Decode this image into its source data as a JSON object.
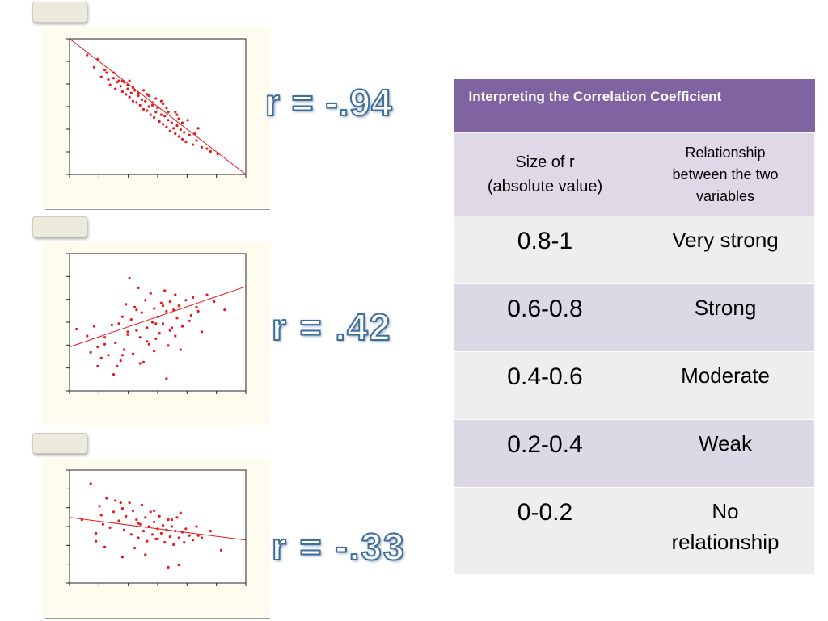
{
  "chart_data": [
    {
      "type": "scatter",
      "r_label": "r = -.94",
      "xlim": [
        0,
        10
      ],
      "ylim": [
        0,
        10
      ],
      "x": [
        1.0,
        1.4,
        1.6,
        1.8,
        2.0,
        2.2,
        2.3,
        2.5,
        2.6,
        2.7,
        2.9,
        3.0,
        3.1,
        3.2,
        3.3,
        3.4,
        3.5,
        3.6,
        3.7,
        3.8,
        3.9,
        4.0,
        4.1,
        4.2,
        4.3,
        4.4,
        4.5,
        4.6,
        4.7,
        4.8,
        4.9,
        5.0,
        5.1,
        5.2,
        5.3,
        5.4,
        5.5,
        5.6,
        5.7,
        5.8,
        5.9,
        6.0,
        6.1,
        6.2,
        6.3,
        6.4,
        6.5,
        6.6,
        6.8,
        7.0,
        7.2,
        7.5,
        7.8,
        8.0,
        8.4,
        3.4,
        4.2,
        4.9,
        5.5,
        6.1,
        2.1,
        2.8,
        3.6,
        4.5,
        5.3,
        6.0,
        6.7,
        7.3,
        3.0,
        3.9,
        4.7,
        5.6,
        6.4,
        2.5,
        3.3,
        4.4,
        5.2,
        6.2,
        7.1
      ],
      "y": [
        8.8,
        7.9,
        8.5,
        7.2,
        7.7,
        7.0,
        6.6,
        7.1,
        6.3,
        6.8,
        6.5,
        6.1,
        6.8,
        5.9,
        6.3,
        5.7,
        6.0,
        5.4,
        6.2,
        5.3,
        5.8,
        5.1,
        5.5,
        4.8,
        5.4,
        4.7,
        5.0,
        4.4,
        5.1,
        4.2,
        4.6,
        4.9,
        3.9,
        4.4,
        3.7,
        4.3,
        3.5,
        4.0,
        3.2,
        3.8,
        3.4,
        3.0,
        3.6,
        2.8,
        3.3,
        2.6,
        3.1,
        2.4,
        2.9,
        2.2,
        2.5,
        2.0,
        1.9,
        1.7,
        1.5,
        6.9,
        6.2,
        5.6,
        4.9,
        4.4,
        7.5,
        6.9,
        6.4,
        5.8,
        5.2,
        4.6,
        4.0,
        3.4,
        6.9,
        6.0,
        5.3,
        4.6,
        3.8,
        7.5,
        6.6,
        5.9,
        5.4,
        4.1,
        3.0
      ],
      "fit": [
        [
          0,
          10
        ],
        [
          10,
          0
        ]
      ]
    },
    {
      "type": "scatter",
      "r_label": "r = .42",
      "xlim": [
        0,
        10
      ],
      "ylim": [
        0,
        10
      ],
      "x": [
        0.4,
        1.0,
        1.2,
        1.4,
        1.6,
        1.8,
        2.0,
        2.2,
        2.4,
        2.5,
        2.6,
        2.8,
        2.9,
        3.0,
        3.1,
        3.2,
        3.3,
        3.4,
        3.5,
        3.6,
        3.7,
        3.8,
        3.9,
        4.0,
        4.1,
        4.2,
        4.3,
        4.4,
        4.5,
        4.6,
        4.7,
        4.8,
        4.9,
        5.0,
        5.1,
        5.2,
        5.3,
        5.4,
        5.5,
        5.6,
        5.7,
        5.8,
        5.9,
        6.0,
        6.1,
        6.2,
        6.4,
        6.6,
        6.8,
        7.0,
        7.2,
        7.5,
        7.8,
        8.2,
        8.8,
        2.0,
        2.7,
        3.3,
        3.8,
        4.4,
        4.9,
        5.3,
        5.7,
        6.3,
        6.9,
        1.6,
        3.0,
        4.0,
        4.8,
        5.5,
        6.0,
        7.3
      ],
      "y": [
        4.5,
        4.0,
        2.8,
        4.7,
        3.2,
        2.4,
        3.9,
        2.6,
        4.8,
        1.2,
        3.5,
        4.9,
        2.2,
        5.4,
        3.0,
        6.3,
        4.1,
        8.2,
        5.2,
        2.7,
        6.1,
        4.4,
        7.5,
        3.9,
        5.7,
        2.1,
        6.6,
        4.6,
        3.4,
        7.1,
        5.0,
        6.0,
        3.8,
        5.4,
        4.2,
        6.4,
        4.9,
        7.3,
        5.8,
        3.3,
        6.5,
        4.6,
        5.9,
        7.0,
        5.3,
        6.2,
        4.7,
        6.6,
        5.1,
        6.8,
        6.1,
        4.3,
        7.0,
        6.5,
        5.9,
        3.4,
        1.8,
        4.3,
        5.9,
        3.6,
        4.9,
        6.2,
        4.4,
        3.0,
        5.5,
        1.8,
        2.6,
        2.0,
        2.9,
        0.9,
        4.0,
        5.8
      ],
      "fit": [
        [
          0,
          3.2
        ],
        [
          10,
          7.6
        ]
      ]
    },
    {
      "type": "scatter",
      "r_label": "r = -.33",
      "xlim": [
        0,
        10
      ],
      "ylim": [
        0,
        10
      ],
      "x": [
        0.7,
        1.2,
        1.5,
        1.7,
        1.9,
        2.1,
        2.3,
        2.5,
        2.6,
        2.8,
        3.0,
        3.1,
        3.2,
        3.4,
        3.5,
        3.6,
        3.8,
        3.9,
        4.0,
        4.1,
        4.2,
        4.3,
        4.4,
        4.5,
        4.6,
        4.7,
        4.8,
        4.9,
        5.0,
        5.1,
        5.2,
        5.3,
        5.4,
        5.5,
        5.6,
        5.7,
        5.8,
        5.9,
        6.0,
        6.1,
        6.2,
        6.3,
        6.4,
        6.5,
        6.6,
        6.8,
        7.0,
        7.2,
        7.5,
        8.0,
        8.6,
        1.5,
        2.0,
        3.0,
        3.7,
        4.3,
        5.0,
        5.6,
        6.2,
        7.3,
        1.8,
        2.9,
        3.9,
        4.8,
        5.8
      ],
      "y": [
        5.6,
        8.8,
        4.4,
        6.8,
        5.2,
        7.5,
        4.9,
        6.3,
        7.3,
        5.5,
        6.6,
        4.7,
        5.9,
        7.1,
        4.3,
        6.4,
        5.6,
        4.0,
        5.2,
        6.9,
        4.6,
        5.8,
        3.7,
        5.0,
        6.3,
        4.3,
        5.4,
        3.9,
        4.8,
        5.9,
        4.4,
        5.1,
        3.6,
        4.7,
        5.6,
        4.1,
        5.0,
        3.4,
        4.6,
        5.8,
        4.0,
        6.2,
        4.5,
        3.6,
        4.8,
        4.2,
        3.8,
        5.0,
        4.0,
        4.6,
        2.9,
        3.7,
        3.2,
        2.3,
        3.1,
        2.5,
        3.9,
        1.4,
        1.6,
        4.2,
        6.0,
        7.1,
        5.3,
        6.4,
        5.6
      ],
      "fit": [
        [
          0,
          5.8
        ],
        [
          10,
          3.8
        ]
      ]
    }
  ],
  "table": {
    "title": "Interpreting the Correlation Coefficient",
    "col1_line1": "Size of r",
    "col1_line2": "(absolute value)",
    "col2_line1": "Relationship",
    "col2_line2": "between the two",
    "col2_line3": "variables",
    "rows": [
      {
        "size": "0.8-1",
        "rel": "Very strong",
        "rel2": ""
      },
      {
        "size": "0.6-0.8",
        "rel": "Strong",
        "rel2": ""
      },
      {
        "size": "0.4-0.6",
        "rel": "Moderate",
        "rel2": ""
      },
      {
        "size": "0.2-0.4",
        "rel": "Weak",
        "rel2": ""
      },
      {
        "size": "0-0.2",
        "rel": "No",
        "rel2": "relationship"
      }
    ]
  },
  "colors": {
    "header": "#8064a2",
    "points": "#e8191c",
    "panel": "#fdfcef",
    "label_stroke": "#3f6e98"
  }
}
